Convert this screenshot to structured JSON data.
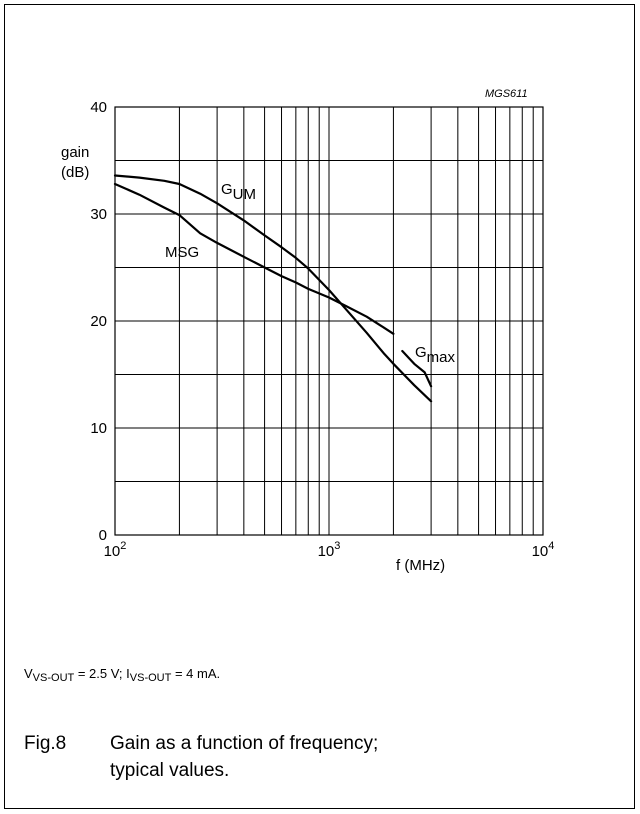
{
  "chart_data": {
    "type": "line",
    "code": "MGS611",
    "ylabel_line1": "gain",
    "ylabel_line2": "(dB)",
    "xlabel": "f (MHz)",
    "x_scale": "log",
    "xlim": [
      100,
      10000
    ],
    "ylim": [
      0,
      40
    ],
    "grid": true,
    "y_ticks": [
      "0",
      "10",
      "20",
      "30",
      "40"
    ],
    "x_ticks": [
      {
        "base": "10",
        "exp": "2",
        "value": 100
      },
      {
        "base": "10",
        "exp": "3",
        "value": 1000
      },
      {
        "base": "10",
        "exp": "4",
        "value": 10000
      }
    ],
    "series": [
      {
        "name": "G",
        "label_sub": "UM",
        "x": [
          100,
          130,
          170,
          200,
          250,
          300,
          400,
          500,
          600,
          700,
          800,
          1000,
          1200,
          1500,
          1800,
          2000,
          2500,
          3000
        ],
        "y": [
          33.6,
          33.4,
          33.1,
          32.8,
          31.9,
          31.0,
          29.4,
          28.0,
          26.9,
          25.9,
          24.9,
          22.9,
          21.1,
          18.9,
          17.0,
          16.0,
          14.0,
          12.5
        ]
      },
      {
        "name": "MSG",
        "x": [
          100,
          130,
          170,
          200,
          250,
          300,
          400,
          500,
          600,
          700,
          800,
          1000,
          1200,
          1500,
          1800,
          2000
        ],
        "y": [
          32.8,
          31.8,
          30.6,
          29.9,
          28.2,
          27.3,
          26.0,
          25.0,
          24.2,
          23.6,
          23.0,
          22.2,
          21.4,
          20.4,
          19.4,
          18.8
        ]
      },
      {
        "name": "G",
        "label_sub": "max",
        "x": [
          2200,
          2500,
          2800,
          3000
        ],
        "y": [
          17.2,
          16.0,
          15.2,
          13.9
        ]
      }
    ]
  },
  "conditions": {
    "v": "V",
    "v_sub": "VS-OUT",
    "v_val": " = 2.5 V; I",
    "i_sub": "VS-OUT",
    "i_val": " = 4 mA."
  },
  "caption": {
    "number": "Fig.8",
    "line1": "Gain as a function of frequency;",
    "line2": "typical values."
  }
}
